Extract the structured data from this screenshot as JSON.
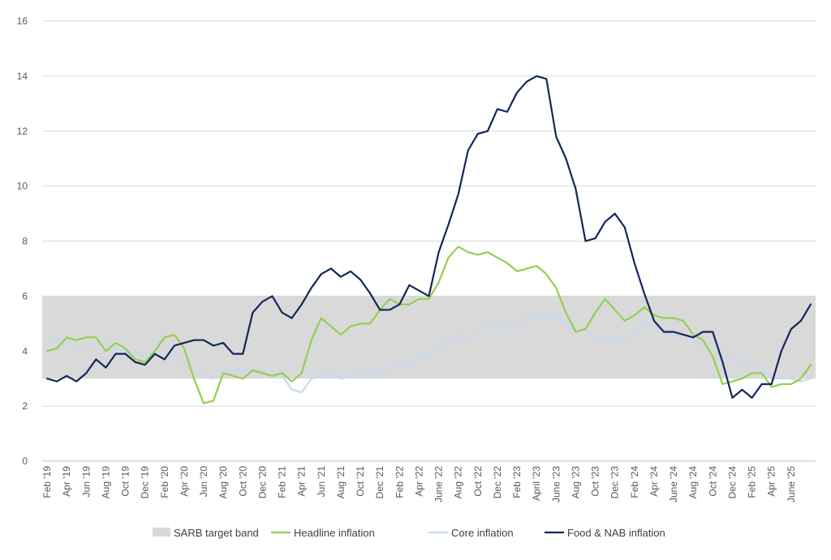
{
  "chart_data": {
    "type": "line",
    "title": "",
    "xlabel": "",
    "ylabel": "",
    "ylim": [
      0,
      16
    ],
    "yticks": [
      0,
      2,
      4,
      6,
      8,
      10,
      12,
      14,
      16
    ],
    "grid": true,
    "legend_position": "bottom",
    "target_band": {
      "name": "SARB target band",
      "low": 3,
      "high": 6,
      "color": "#d9d9d9"
    },
    "x": [
      "Feb '19",
      "Mar '19",
      "Apr '19",
      "May '19",
      "Jun '19",
      "Jul '19",
      "Aug '19",
      "Sep '19",
      "Oct '19",
      "Nov '19",
      "Dec '19",
      "Jan '20",
      "Feb '20",
      "Mar '20",
      "Apr '20",
      "May '20",
      "Jun '20",
      "Jul '20",
      "Aug '20",
      "Sep '20",
      "Oct '20",
      "Nov '20",
      "Dec '20",
      "Jan '21",
      "Feb '21",
      "Mar '21",
      "Apr '21",
      "May '21",
      "Jun '21",
      "Jul '21",
      "Aug '21",
      "Sep '21",
      "Oct '21",
      "Nov '21",
      "Dec '21",
      "Jan '22",
      "Feb '22",
      "Mar '22",
      "Apr '22",
      "May '22",
      "June '22",
      "Jul '22",
      "Aug '22",
      "Sep '22",
      "Oct '22",
      "Nov '22",
      "Dec '22",
      "Jan '23",
      "Feb '23",
      "Mar '23",
      "April '23",
      "May '23",
      "June '23",
      "Jul '23",
      "Aug '23",
      "Sep '23",
      "Oct '23",
      "Nov '23",
      "Dec '23",
      "Jan '24",
      "Feb '24",
      "Mar '24",
      "Apr '24",
      "May '24",
      "June '24",
      "Jul '24",
      "Aug '24",
      "Sep '24",
      "Oct '24",
      "Nov '24",
      "Dec '24",
      "Jan '25",
      "Feb '25",
      "Mar '25",
      "Apr '25",
      "May '25",
      "June '25",
      "Jul '25",
      "Aug '25"
    ],
    "tick_labels": [
      "Feb '19",
      "Apr '19",
      "Jun '19",
      "Aug '19",
      "Oct '19",
      "Dec '19",
      "Feb '20",
      "Apr '20",
      "Jun '20",
      "Aug '20",
      "Oct '20",
      "Dec '20",
      "Feb '21",
      "Apr '21",
      "Jun '21",
      "Aug '21",
      "Oct '21",
      "Dec '21",
      "Feb '22",
      "Apr '22",
      "June '22",
      "Aug '22",
      "Oct '22",
      "Dec '22",
      "Feb '23",
      "April '23",
      "June '23",
      "Aug '23",
      "Oct '23",
      "Dec '23",
      "Feb '24",
      "Apr '24",
      "June '24",
      "Aug '24",
      "Oct '24",
      "Dec '24",
      "Feb '25",
      "Apr '25",
      "June '25"
    ],
    "series": [
      {
        "name": "Headline inflation",
        "color": "#92d050",
        "values": [
          4.0,
          4.1,
          4.5,
          4.4,
          4.5,
          4.5,
          4.0,
          4.3,
          4.1,
          3.7,
          3.6,
          4.0,
          4.5,
          4.6,
          4.1,
          3.0,
          2.1,
          2.2,
          3.2,
          3.1,
          3.0,
          3.3,
          3.2,
          3.1,
          3.2,
          2.9,
          3.2,
          4.4,
          5.2,
          4.9,
          4.6,
          4.9,
          5.0,
          5.0,
          5.5,
          5.9,
          5.7,
          5.7,
          5.9,
          5.9,
          6.5,
          7.4,
          7.8,
          7.6,
          7.5,
          7.6,
          7.4,
          7.2,
          6.9,
          7.0,
          7.1,
          6.8,
          6.3,
          5.4,
          4.7,
          4.8,
          5.4,
          5.9,
          5.5,
          5.1,
          5.3,
          5.6,
          5.3,
          5.2,
          5.2,
          5.1,
          4.6,
          4.4,
          3.8,
          2.8,
          2.9,
          3.0,
          3.2,
          3.2,
          2.7,
          2.8,
          2.8,
          3.0,
          3.5
        ]
      },
      {
        "name": "Core inflation",
        "color": "#c5d9f1",
        "values": [
          4.4,
          4.4,
          4.4,
          4.1,
          4.1,
          4.3,
          4.3,
          4.1,
          4.0,
          3.9,
          3.8,
          3.8,
          3.8,
          3.8,
          3.6,
          3.3,
          3.1,
          3.0,
          3.3,
          3.3,
          3.3,
          3.3,
          3.3,
          3.2,
          3.1,
          2.6,
          2.5,
          3.0,
          3.1,
          3.2,
          3.0,
          3.1,
          3.2,
          3.2,
          3.3,
          3.4,
          3.5,
          3.5,
          3.8,
          3.9,
          4.1,
          4.4,
          4.6,
          4.4,
          4.7,
          5.0,
          5.0,
          4.9,
          4.9,
          5.2,
          5.2,
          5.3,
          5.2,
          5.0,
          4.7,
          4.8,
          4.5,
          4.4,
          4.5,
          4.5,
          4.6,
          5.0,
          4.9,
          4.7,
          4.6,
          4.5,
          4.4,
          4.2,
          4.0,
          3.8,
          3.7,
          3.6,
          3.5,
          3.4,
          3.0,
          3.0,
          3.0,
          2.9,
          3.0
        ]
      },
      {
        "name": "Food & NAB inflation",
        "color": "#14265a",
        "values": [
          3.0,
          2.9,
          3.1,
          2.9,
          3.2,
          3.7,
          3.4,
          3.9,
          3.9,
          3.6,
          3.5,
          3.9,
          3.7,
          4.2,
          4.3,
          4.4,
          4.4,
          4.2,
          4.3,
          3.9,
          3.9,
          5.4,
          5.8,
          6.0,
          5.4,
          5.2,
          5.7,
          6.3,
          6.8,
          7.0,
          6.7,
          6.9,
          6.6,
          6.1,
          5.5,
          5.5,
          5.7,
          6.4,
          6.2,
          6.0,
          7.6,
          8.6,
          9.7,
          11.3,
          11.9,
          12.0,
          12.8,
          12.7,
          13.4,
          13.8,
          14.0,
          13.9,
          11.8,
          11.0,
          9.9,
          8.0,
          8.1,
          8.7,
          9.0,
          8.5,
          7.2,
          6.1,
          5.1,
          4.7,
          4.7,
          4.6,
          4.5,
          4.7,
          4.7,
          3.6,
          2.3,
          2.6,
          2.3,
          2.8,
          2.8,
          4.0,
          4.8,
          5.1,
          5.7
        ]
      }
    ],
    "legend": [
      "SARB target band",
      "Headline inflation",
      "Core inflation",
      "Food & NAB inflation"
    ]
  }
}
